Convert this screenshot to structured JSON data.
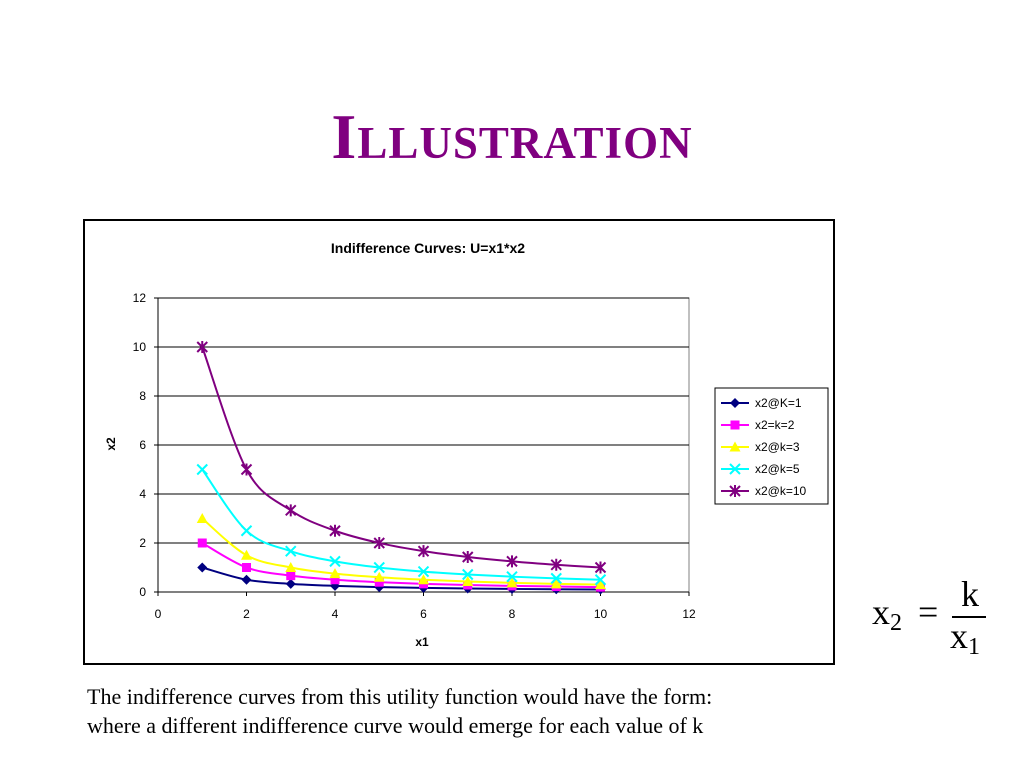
{
  "slide": {
    "title": "Illustration",
    "caption_line1": "The indifference curves from this utility function would have the form:",
    "caption_line2": "where a different indifference curve would emerge for each value of k"
  },
  "formula": {
    "lhs": "x",
    "lhs_sub": "2",
    "equals": "=",
    "numerator": "k",
    "denominator": "x",
    "denominator_sub": "1"
  },
  "chart_data": {
    "type": "line",
    "title": "Indifference Curves: U=x1*x2",
    "xlabel": "x1",
    "ylabel": "x2",
    "xlim": [
      0,
      12
    ],
    "ylim": [
      0,
      12
    ],
    "xticks": [
      0,
      2,
      4,
      6,
      8,
      10,
      12
    ],
    "yticks": [
      0,
      2,
      4,
      6,
      8,
      10,
      12
    ],
    "grid": "horizontal major gridlines",
    "legend_position": "right",
    "x": [
      1,
      2,
      3,
      4,
      5,
      6,
      7,
      8,
      9,
      10
    ],
    "series": [
      {
        "name": "x2@K=1",
        "color": "#000080",
        "marker": "diamond",
        "values": [
          1,
          0.5,
          0.333,
          0.25,
          0.2,
          0.167,
          0.143,
          0.125,
          0.111,
          0.1
        ]
      },
      {
        "name": "x2=k=2",
        "color": "#ff00ff",
        "marker": "square",
        "values": [
          2,
          1,
          0.667,
          0.5,
          0.4,
          0.333,
          0.286,
          0.25,
          0.222,
          0.2
        ]
      },
      {
        "name": "x2@k=3",
        "color": "#ffff00",
        "marker": "triangle",
        "values": [
          3,
          1.5,
          1,
          0.75,
          0.6,
          0.5,
          0.429,
          0.375,
          0.333,
          0.3
        ]
      },
      {
        "name": "x2@k=5",
        "color": "#00ffff",
        "marker": "x",
        "values": [
          5,
          2.5,
          1.667,
          1.25,
          1,
          0.833,
          0.714,
          0.625,
          0.556,
          0.5
        ]
      },
      {
        "name": "x2@k=10",
        "color": "#800080",
        "marker": "star",
        "values": [
          10,
          5,
          3.333,
          2.5,
          2,
          1.667,
          1.429,
          1.25,
          1.111,
          1
        ]
      }
    ]
  }
}
